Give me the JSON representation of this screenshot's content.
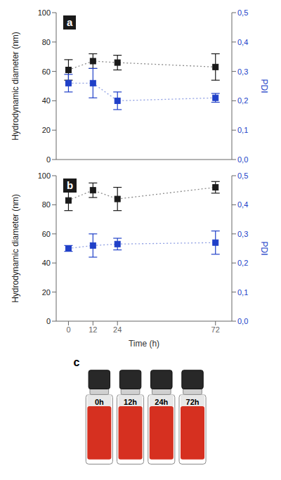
{
  "chart_data": [
    {
      "type": "scatter",
      "title": "a",
      "x": [
        0,
        12,
        24,
        72
      ],
      "xlim": [
        -6,
        80
      ],
      "xticks": [
        0,
        12,
        24,
        72
      ],
      "ylabel": "Hydrodynamic diameter (nm)",
      "y2label": "PDI",
      "ylim": [
        0,
        100
      ],
      "yticks": [
        0,
        20,
        40,
        60,
        80,
        100
      ],
      "y2lim": [
        0.0,
        0.5
      ],
      "y2ticks": [
        {
          "value": 0.0,
          "label": "0,0"
        },
        {
          "value": 0.1,
          "label": "0,1"
        },
        {
          "value": 0.2,
          "label": "0,2"
        },
        {
          "value": 0.3,
          "label": "0,3"
        },
        {
          "value": 0.4,
          "label": "0,4"
        },
        {
          "value": 0.5,
          "label": "0,5"
        }
      ],
      "tick_labels": "y",
      "grid": false,
      "marker": "square",
      "line_style": "dotted",
      "series": [
        {
          "name": "Hydrodynamic diameter (nm)",
          "color": "#1a1a1a",
          "values": [
            61,
            67,
            66,
            63
          ],
          "errors": [
            7,
            5,
            5,
            9
          ]
        },
        {
          "name": "PDI",
          "color": "#2040c8",
          "axis": "y2",
          "values": [
            0.26,
            0.26,
            0.2,
            0.21
          ],
          "errors": [
            0.03,
            0.05,
            0.03,
            0.015
          ]
        }
      ]
    },
    {
      "type": "scatter",
      "title": "b",
      "x": [
        0,
        12,
        24,
        72
      ],
      "xlim": [
        -6,
        80
      ],
      "xticks": [
        0,
        12,
        24,
        72
      ],
      "xlabel": "Time (h)",
      "ylabel": "Hydrodynamic diameter (nm)",
      "y2label": "PDI",
      "ylim": [
        0,
        100
      ],
      "yticks": [
        0,
        20,
        40,
        60,
        80,
        100
      ],
      "y2lim": [
        0.0,
        0.5
      ],
      "y2ticks": [
        {
          "value": 0.0,
          "label": "0,0"
        },
        {
          "value": 0.1,
          "label": "0,1"
        },
        {
          "value": 0.2,
          "label": "0,2"
        },
        {
          "value": 0.3,
          "label": "0,3"
        },
        {
          "value": 0.4,
          "label": "0,4"
        },
        {
          "value": 0.5,
          "label": "0,5"
        }
      ],
      "grid": false,
      "marker": "square",
      "line_style": "dotted",
      "series": [
        {
          "name": "Hydrodynamic diameter (nm)",
          "color": "#1a1a1a",
          "values": [
            83,
            90,
            84,
            92
          ],
          "errors": [
            7,
            5,
            8,
            4
          ]
        },
        {
          "name": "PDI",
          "color": "#2040c8",
          "axis": "y2",
          "values": [
            0.25,
            0.26,
            0.265,
            0.27
          ],
          "errors": [
            0.01,
            0.04,
            0.02,
            0.04
          ]
        }
      ]
    },
    {
      "type": "image",
      "title": "c",
      "annotations": [
        "0h",
        "12h",
        "24h",
        "72h"
      ]
    }
  ]
}
